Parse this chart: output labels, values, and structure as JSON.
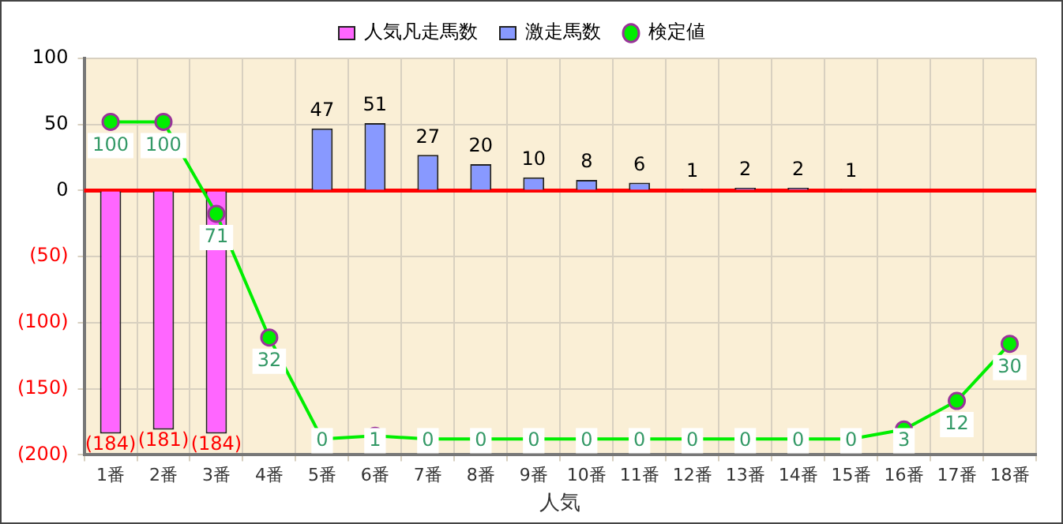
{
  "chart_data": {
    "type": "bar",
    "xlabel": "人気",
    "categories": [
      "1番",
      "2番",
      "3番",
      "4番",
      "5番",
      "6番",
      "7番",
      "8番",
      "9番",
      "10番",
      "11番",
      "12番",
      "13番",
      "14番",
      "15番",
      "16番",
      "17番",
      "18番"
    ],
    "series": [
      {
        "name": "人気凡走馬数",
        "color": "#ff66ff",
        "values": [
          -184,
          -181,
          -184,
          null,
          null,
          null,
          null,
          null,
          null,
          null,
          null,
          null,
          null,
          null,
          null,
          null,
          null,
          null
        ],
        "value_labels": [
          "(184)",
          "(181)",
          "(184)",
          null,
          null,
          null,
          null,
          null,
          null,
          null,
          null,
          null,
          null,
          null,
          null,
          null,
          null,
          null
        ]
      },
      {
        "name": "激走馬数",
        "color": "#8899ff",
        "values": [
          null,
          null,
          null,
          null,
          47,
          51,
          27,
          20,
          10,
          8,
          6,
          1,
          2,
          2,
          1,
          null,
          null,
          null
        ],
        "value_labels": [
          null,
          null,
          null,
          null,
          "47",
          "51",
          "27",
          "20",
          "10",
          "8",
          "6",
          "1",
          "2",
          "2",
          "1",
          null,
          null,
          null
        ]
      },
      {
        "name": "検定値",
        "type": "line",
        "axis": "y2",
        "color": "#00ee00",
        "values": [
          100,
          100,
          71,
          32,
          0,
          1,
          0,
          0,
          0,
          0,
          0,
          0,
          0,
          0,
          0,
          3,
          12,
          30
        ],
        "value_labels": [
          "100",
          "100",
          "71",
          "32",
          "0",
          "1",
          "0",
          "0",
          "0",
          "0",
          "0",
          "0",
          "0",
          "0",
          "0",
          "3",
          "12",
          "30"
        ]
      }
    ],
    "ylim": [
      -200,
      100
    ],
    "yticks": [
      {
        "value": -200,
        "label": "(200)"
      },
      {
        "value": -150,
        "label": "(150)"
      },
      {
        "value": -100,
        "label": "(100)"
      },
      {
        "value": -50,
        "label": "(50)"
      },
      0,
      50,
      100
    ],
    "y2lim": [
      -5,
      120
    ],
    "tick_labels": "xy",
    "ref_lines": [
      {
        "axis": "y",
        "value": 0,
        "color": "#ff0000"
      }
    ],
    "grid": true,
    "legend": "top",
    "marker": "circle",
    "line_style": "solid"
  }
}
